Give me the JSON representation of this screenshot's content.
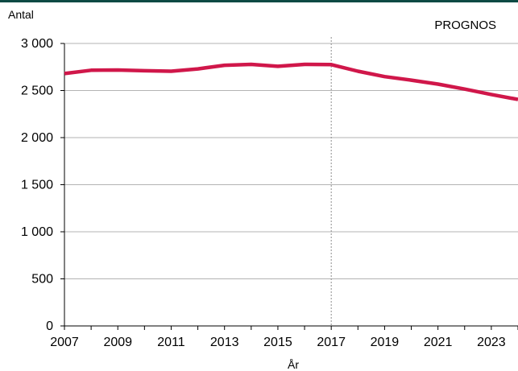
{
  "chart_data": {
    "type": "line",
    "ylabel": "Antal",
    "xlabel": "År",
    "annotation": "PROGNOS",
    "forecast_start": 2017,
    "xlim": [
      2007,
      2024
    ],
    "ylim": [
      0,
      3000
    ],
    "x_ticks": [
      2007,
      2009,
      2011,
      2013,
      2015,
      2017,
      2019,
      2021,
      2023
    ],
    "x_tick_labels": [
      "2007",
      "2009",
      "2011",
      "2013",
      "2015",
      "2017",
      "2019",
      "2021",
      "2023"
    ],
    "y_ticks": [
      0,
      500,
      1000,
      1500,
      2000,
      2500,
      3000
    ],
    "y_tick_labels": [
      "0",
      "500",
      "1 000",
      "1 500",
      "2 000",
      "2 500",
      "3 000"
    ],
    "grid": true,
    "colors": {
      "line": "#d0174a",
      "grid": "#b3b3b3",
      "axis": "#000000",
      "divider": "#8c8c8c"
    },
    "series": [
      {
        "x": [
          2007,
          2008,
          2009,
          2010,
          2011,
          2012,
          2013,
          2014,
          2015,
          2016,
          2017,
          2018,
          2019,
          2020,
          2021,
          2022,
          2023,
          2024
        ],
        "values": [
          2680,
          2715,
          2718,
          2710,
          2705,
          2730,
          2768,
          2778,
          2757,
          2778,
          2775,
          2705,
          2648,
          2610,
          2568,
          2515,
          2458,
          2405
        ]
      }
    ]
  }
}
